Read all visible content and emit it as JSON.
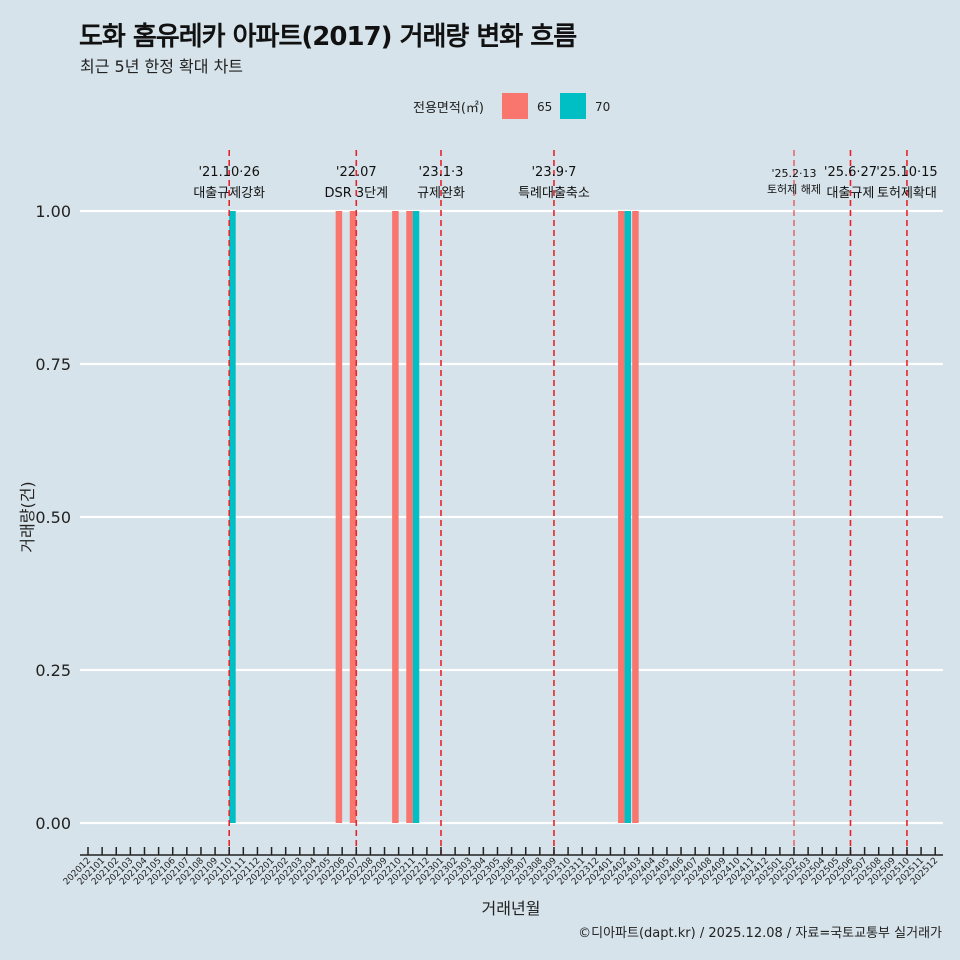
{
  "title": "도화 홈유레카 아파트(2017) 거래량 변화 흐름",
  "subtitle": "최근 5년 한정 확대 차트",
  "caption": "©디아파트(dapt.kr) / 2025.12.08 / 자료=국토교통부 실거래가",
  "chart_data": {
    "type": "bar",
    "xlabel": "거래년월",
    "ylabel": "거래량(건)",
    "ylim": [
      0,
      1
    ],
    "yticks": [
      "0.00",
      "0.25",
      "0.50",
      "0.75",
      "1.00"
    ],
    "grid": true,
    "legend": {
      "title": "전용면적(㎡)",
      "placement": "top",
      "entries": [
        {
          "name": "65",
          "color": "#f8766d"
        },
        {
          "name": "70",
          "color": "#00bfc4"
        }
      ]
    },
    "categories": [
      "202012",
      "202101",
      "202102",
      "202103",
      "202104",
      "202105",
      "202106",
      "202107",
      "202108",
      "202109",
      "202110",
      "202111",
      "202112",
      "202201",
      "202202",
      "202203",
      "202204",
      "202205",
      "202206",
      "202207",
      "202208",
      "202209",
      "202210",
      "202211",
      "202212",
      "202301",
      "202302",
      "202303",
      "202304",
      "202305",
      "202306",
      "202307",
      "202308",
      "202309",
      "202310",
      "202311",
      "202312",
      "202401",
      "202402",
      "202403",
      "202404",
      "202405",
      "202406",
      "202407",
      "202408",
      "202409",
      "202410",
      "202411",
      "202412",
      "202501",
      "202502",
      "202503",
      "202504",
      "202505",
      "202506",
      "202507",
      "202508",
      "202509",
      "202510",
      "202511",
      "202512"
    ],
    "series": [
      {
        "name": "65",
        "color": "#f8766d",
        "points": [
          {
            "x": "202206",
            "y": 1
          },
          {
            "x": "202207",
            "y": 1
          },
          {
            "x": "202210",
            "y": 1
          },
          {
            "x": "202211",
            "y": 1
          },
          {
            "x": "202402",
            "y": 1
          },
          {
            "x": "202403",
            "y": 1
          }
        ]
      },
      {
        "name": "70",
        "color": "#00bfc4",
        "points": [
          {
            "x": "202110",
            "y": 1
          },
          {
            "x": "202211",
            "y": 1
          },
          {
            "x": "202402",
            "y": 1
          }
        ]
      }
    ],
    "annotations": [
      {
        "x": "202110",
        "date": "'21.10·26",
        "label": "대출규제강화",
        "small": false
      },
      {
        "x": "202207",
        "date": "'22.07",
        "label": "DSR 3단계",
        "small": false
      },
      {
        "x": "202301",
        "date": "'23.1·3",
        "label": "규제완화",
        "small": false
      },
      {
        "x": "202309",
        "date": "'23.9·7",
        "label": "특례대출축소",
        "small": false
      },
      {
        "x": "202502",
        "date": "'25.2·13",
        "label": "토허제 해제",
        "small": true
      },
      {
        "x": "202506",
        "date": "'25.6·27",
        "label": "대출규제",
        "small": false
      },
      {
        "x": "202510",
        "date": "'25.10·15",
        "label": "토허제확대",
        "small": false
      }
    ]
  }
}
